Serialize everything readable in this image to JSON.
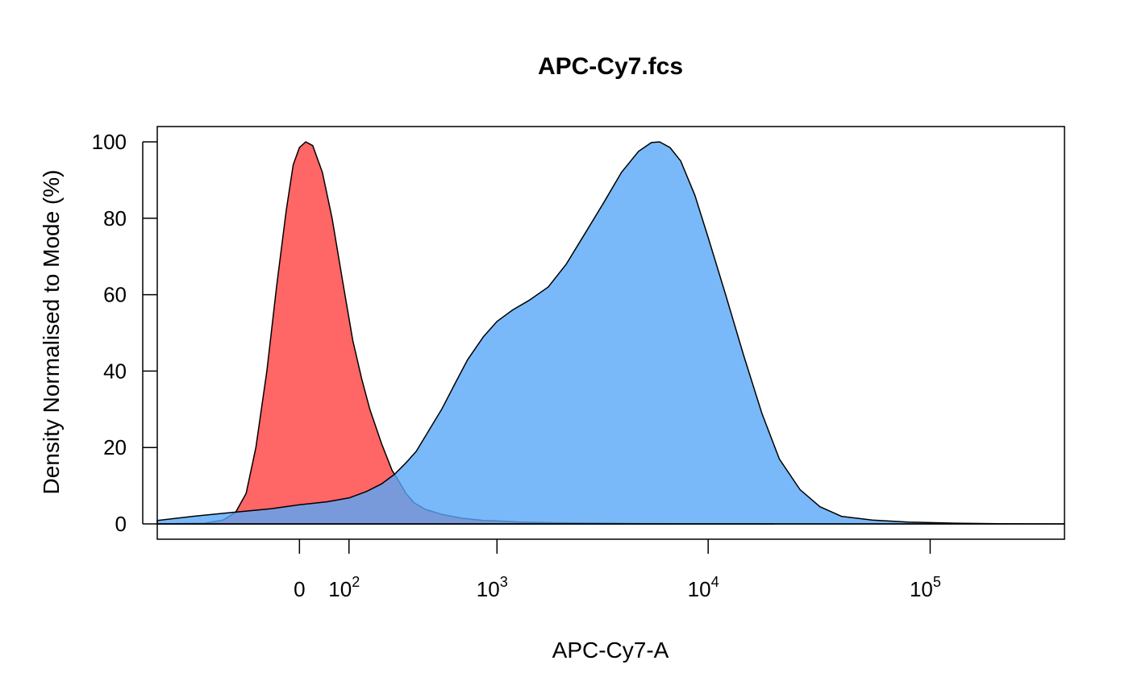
{
  "chart_data": {
    "type": "area",
    "title": "APC-Cy7.fcs",
    "xlabel": "APC-Cy7-A",
    "ylabel": "Density Normalised to Mode (%)",
    "x_scale": "logicle",
    "xlim": [
      -500,
      400000
    ],
    "ylim": [
      -4,
      104
    ],
    "x_ticks": [
      {
        "value": 0,
        "base": "0",
        "exp": ""
      },
      {
        "value": 100,
        "base": "10",
        "exp": "2"
      },
      {
        "value": 1000,
        "base": "10",
        "exp": "3"
      },
      {
        "value": 10000,
        "base": "10",
        "exp": "4"
      },
      {
        "value": 100000,
        "base": "10",
        "exp": "5"
      }
    ],
    "y_ticks": [
      0,
      20,
      40,
      60,
      80,
      100
    ],
    "grid": false,
    "baseline": 0,
    "series": [
      {
        "color": "#FF4040",
        "alpha": 0.8,
        "points": [
          [
            -500,
            0
          ],
          [
            -250,
            0.2
          ],
          [
            -180,
            1
          ],
          [
            -140,
            3
          ],
          [
            -110,
            8
          ],
          [
            -85,
            20
          ],
          [
            -60,
            40
          ],
          [
            -40,
            62
          ],
          [
            -22,
            82
          ],
          [
            -10,
            94
          ],
          [
            0,
            98.5
          ],
          [
            10,
            100
          ],
          [
            22,
            99
          ],
          [
            40,
            92
          ],
          [
            60,
            80
          ],
          [
            85,
            63
          ],
          [
            110,
            48
          ],
          [
            135,
            38
          ],
          [
            160,
            30
          ],
          [
            200,
            21
          ],
          [
            240,
            14
          ],
          [
            270,
            11
          ],
          [
            300,
            8
          ],
          [
            340,
            5.5
          ],
          [
            400,
            3.8
          ],
          [
            500,
            2.5
          ],
          [
            650,
            1.5
          ],
          [
            850,
            0.9
          ],
          [
            1000,
            0.8
          ],
          [
            1300,
            0.5
          ],
          [
            2000,
            0.3
          ],
          [
            5000,
            0.1
          ],
          [
            20000,
            0
          ]
        ]
      },
      {
        "color": "#57A8F8",
        "alpha": 0.8,
        "points": [
          [
            -500,
            0.9
          ],
          [
            -300,
            2
          ],
          [
            -150,
            3
          ],
          [
            -50,
            4
          ],
          [
            0,
            5
          ],
          [
            50,
            5.8
          ],
          [
            100,
            6.8
          ],
          [
            150,
            8.5
          ],
          [
            200,
            10.5
          ],
          [
            250,
            13
          ],
          [
            300,
            16
          ],
          [
            350,
            19
          ],
          [
            400,
            23
          ],
          [
            500,
            30
          ],
          [
            600,
            37
          ],
          [
            700,
            43
          ],
          [
            850,
            49
          ],
          [
            1000,
            53
          ],
          [
            1200,
            56
          ],
          [
            1450,
            58.5
          ],
          [
            1800,
            62
          ],
          [
            2200,
            68
          ],
          [
            2700,
            76
          ],
          [
            3300,
            84
          ],
          [
            4000,
            92
          ],
          [
            4800,
            97.5
          ],
          [
            5500,
            99.8
          ],
          [
            6000,
            100
          ],
          [
            6700,
            98.5
          ],
          [
            7500,
            95
          ],
          [
            8700,
            86
          ],
          [
            10000,
            75
          ],
          [
            12000,
            60
          ],
          [
            14500,
            44
          ],
          [
            17500,
            29
          ],
          [
            21000,
            17
          ],
          [
            26000,
            9
          ],
          [
            32000,
            4.5
          ],
          [
            40000,
            2
          ],
          [
            55000,
            1
          ],
          [
            80000,
            0.5
          ],
          [
            100000,
            0.35
          ],
          [
            130000,
            0.2
          ],
          [
            200000,
            0.05
          ],
          [
            400000,
            0
          ]
        ]
      }
    ]
  }
}
